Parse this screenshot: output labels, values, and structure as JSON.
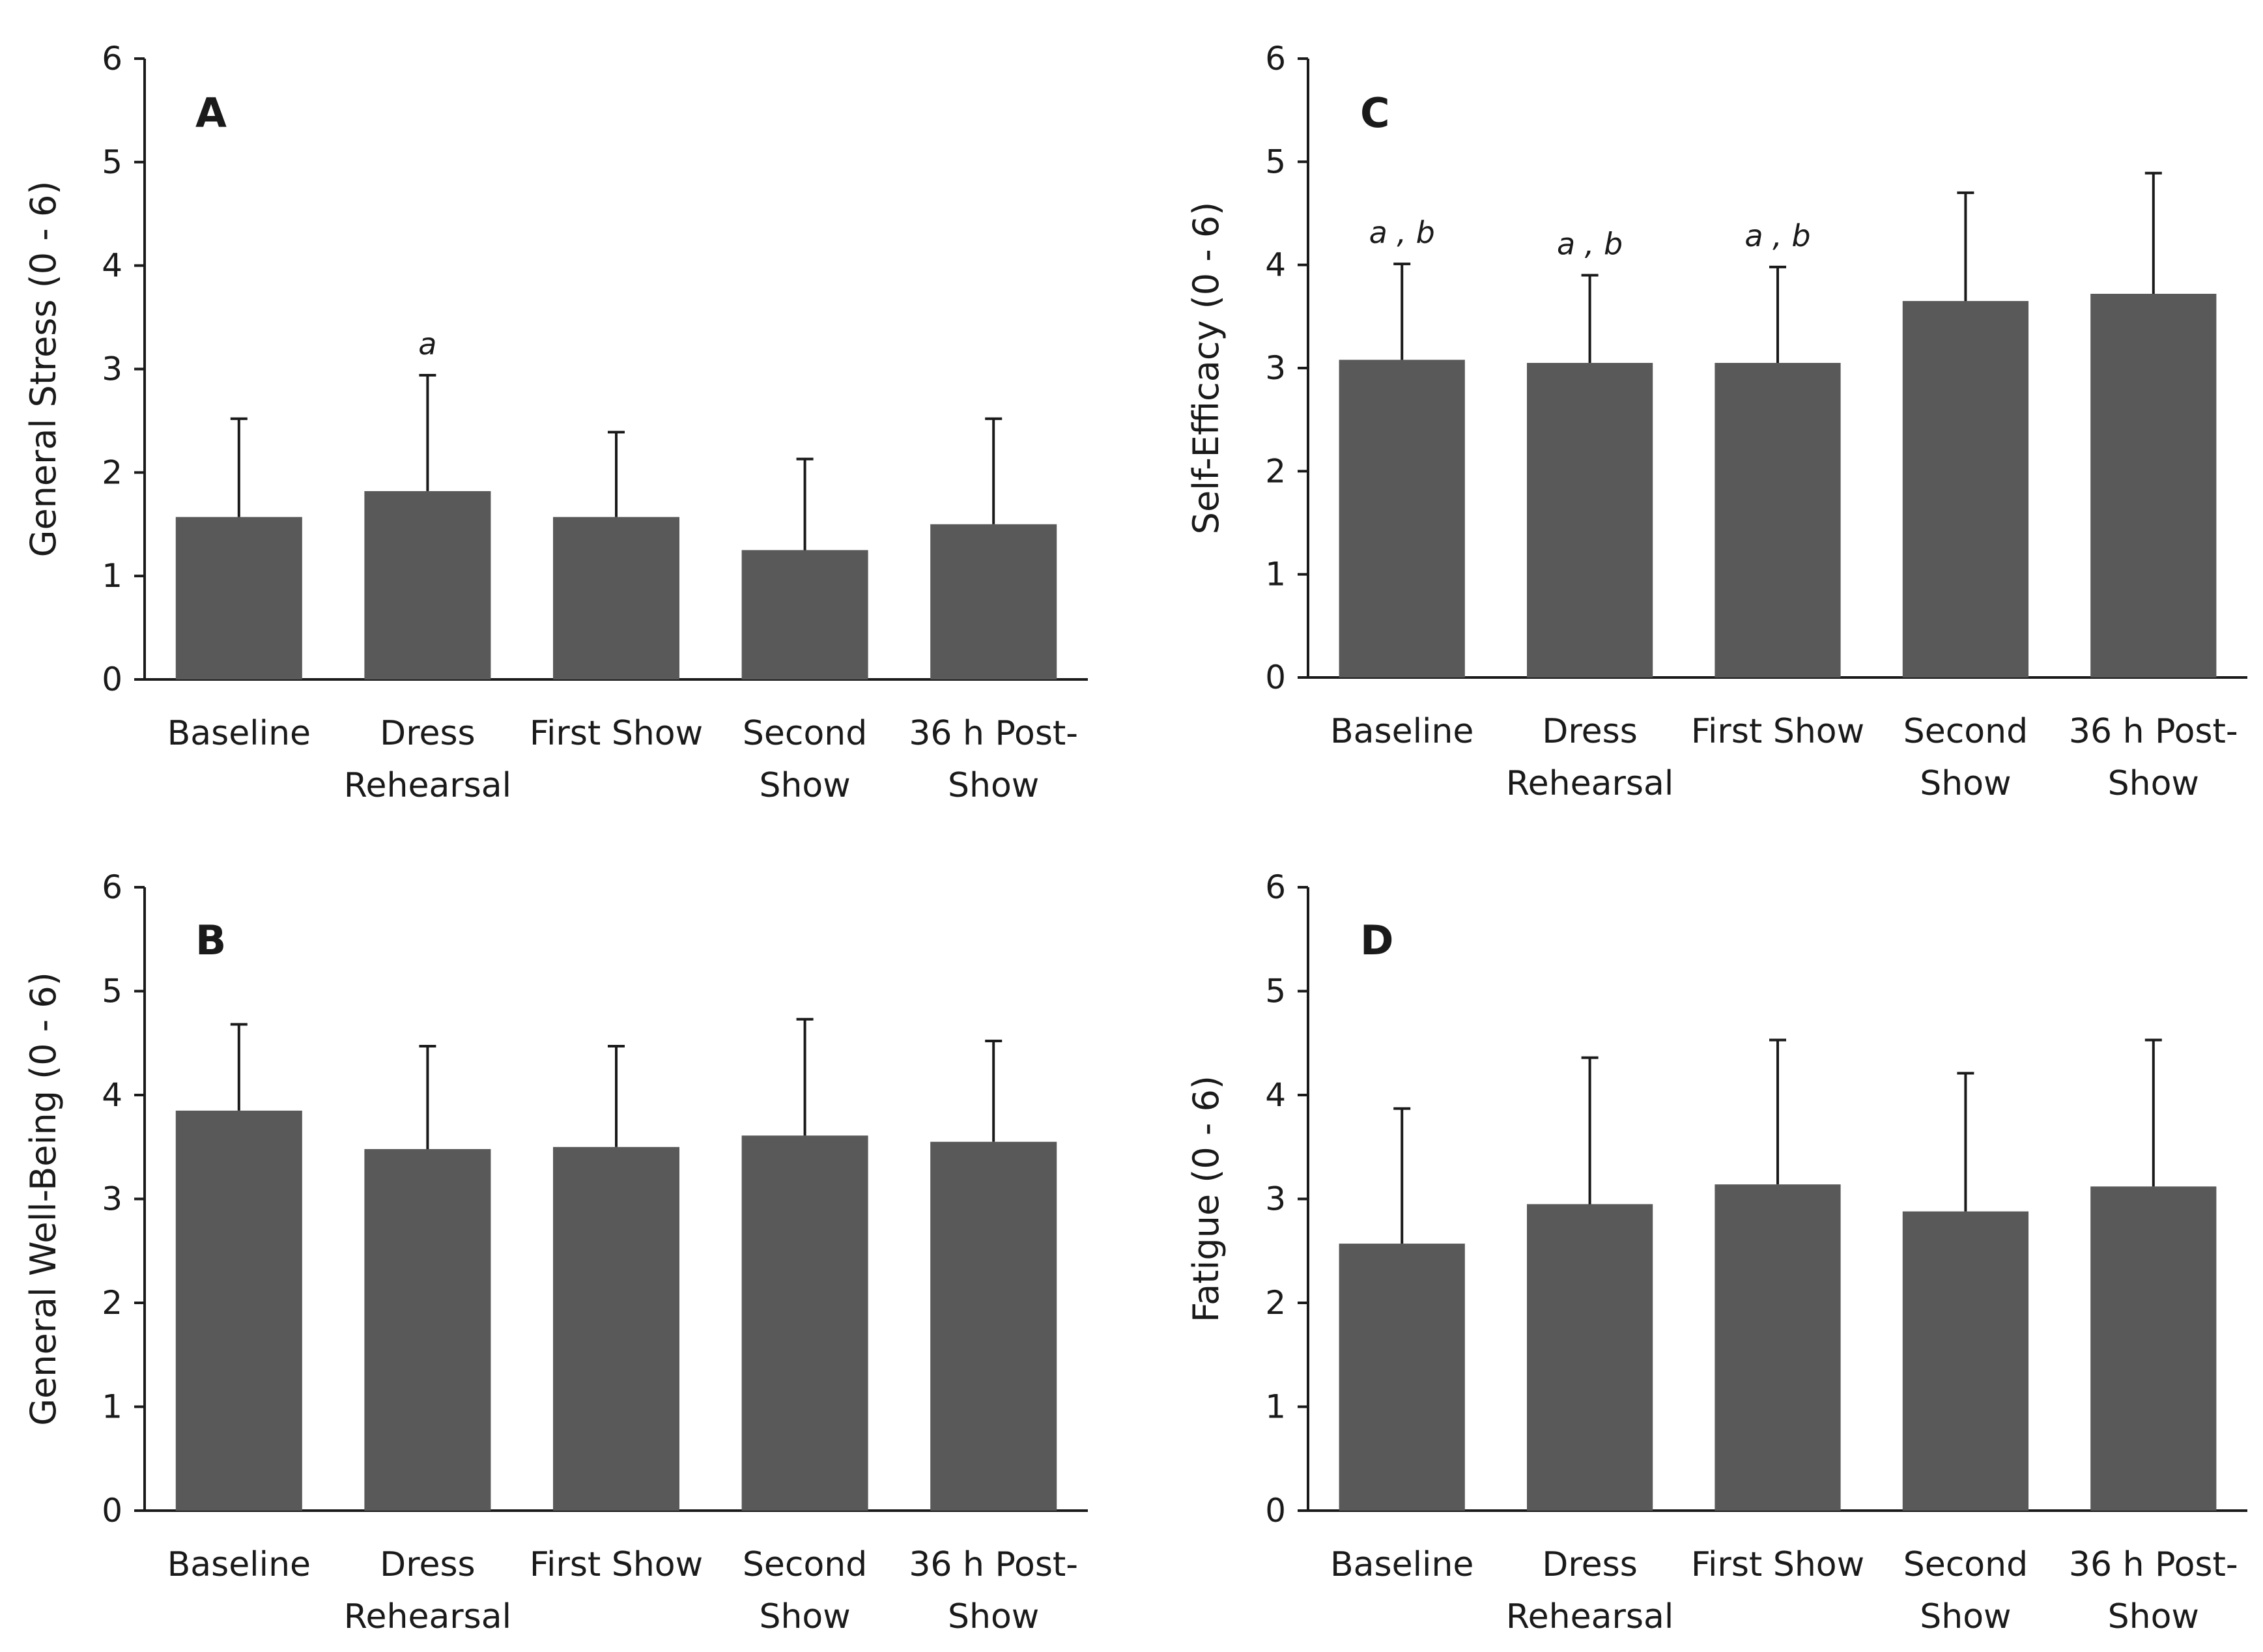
{
  "chart_data": [
    {
      "panel": "A",
      "type": "bar",
      "ylabel": "General Stress (0 - 6)",
      "ylim": [
        0,
        6
      ],
      "yticks": [
        0,
        1,
        2,
        3,
        4,
        5,
        6
      ],
      "categories": [
        [
          "Baseline"
        ],
        [
          "Dress",
          "Rehearsal"
        ],
        [
          "First Show"
        ],
        [
          "Second",
          "Show"
        ],
        [
          "36 h Post-",
          "Show"
        ]
      ],
      "values": [
        1.57,
        1.82,
        1.57,
        1.25,
        1.5
      ],
      "errors": [
        0.95,
        1.12,
        0.82,
        0.88,
        1.02
      ],
      "annotations": [
        "",
        "a",
        "",
        "",
        ""
      ],
      "color": "#595959"
    },
    {
      "panel": "B",
      "type": "bar",
      "ylabel": "General Well-Being (0 - 6)",
      "ylim": [
        0,
        6
      ],
      "yticks": [
        0,
        1,
        2,
        3,
        4,
        5,
        6
      ],
      "categories": [
        [
          "Baseline"
        ],
        [
          "Dress",
          "Rehearsal"
        ],
        [
          "First Show"
        ],
        [
          "Second",
          "Show"
        ],
        [
          "36 h Post-",
          "Show"
        ]
      ],
      "values": [
        3.85,
        3.48,
        3.5,
        3.61,
        3.55
      ],
      "errors": [
        0.83,
        0.99,
        0.97,
        1.12,
        0.97
      ],
      "annotations": [
        "",
        "",
        "",
        "",
        ""
      ],
      "color": "#595959"
    },
    {
      "panel": "C",
      "type": "bar",
      "ylabel": "Self-Efficacy (0 - 6)",
      "ylim": [
        0,
        6
      ],
      "yticks": [
        0,
        1,
        2,
        3,
        4,
        5,
        6
      ],
      "categories": [
        [
          "Baseline"
        ],
        [
          "Dress",
          "Rehearsal"
        ],
        [
          "First Show"
        ],
        [
          "Second",
          "Show"
        ],
        [
          "36 h Post-",
          "Show"
        ]
      ],
      "values": [
        3.08,
        3.05,
        3.05,
        3.65,
        3.72
      ],
      "errors": [
        0.93,
        0.85,
        0.93,
        1.05,
        1.17
      ],
      "annotations": [
        "a , b",
        "a , b",
        "a , b",
        "",
        ""
      ],
      "color": "#595959"
    },
    {
      "panel": "D",
      "type": "bar",
      "ylabel": "Fatigue (0 - 6)",
      "ylim": [
        0,
        6
      ],
      "yticks": [
        0,
        1,
        2,
        3,
        4,
        5,
        6
      ],
      "categories": [
        [
          "Baseline"
        ],
        [
          "Dress",
          "Rehearsal"
        ],
        [
          "First Show"
        ],
        [
          "Second",
          "Show"
        ],
        [
          "36 h Post-",
          "Show"
        ]
      ],
      "values": [
        2.57,
        2.95,
        3.14,
        2.88,
        3.12
      ],
      "errors": [
        1.3,
        1.41,
        1.39,
        1.33,
        1.41
      ],
      "annotations": [
        "",
        "",
        "",
        "",
        ""
      ],
      "color": "#595959"
    }
  ]
}
